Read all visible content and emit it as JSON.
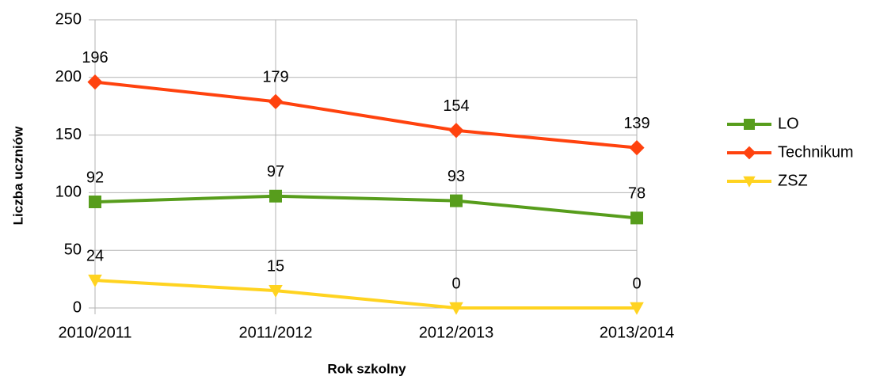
{
  "chart_data": {
    "type": "line",
    "x_label": "Rok szkolny",
    "y_label": "Liczba uczniów",
    "categories": [
      "2010/2011",
      "2011/2012",
      "2012/2013",
      "2013/2014"
    ],
    "series": [
      {
        "name": "LO",
        "color": "#579d1c",
        "marker": "square",
        "values": [
          92,
          97,
          93,
          78
        ]
      },
      {
        "name": "Technikum",
        "color": "#ff420e",
        "marker": "diamond",
        "values": [
          196,
          179,
          154,
          139
        ]
      },
      {
        "name": "ZSZ",
        "color": "#ffd320",
        "marker": "triangle-down",
        "values": [
          24,
          15,
          0,
          0
        ]
      }
    ],
    "ylim": [
      0,
      250
    ],
    "yticks": [
      0,
      50,
      100,
      150,
      200,
      250
    ],
    "grid": true,
    "legend": "right"
  }
}
